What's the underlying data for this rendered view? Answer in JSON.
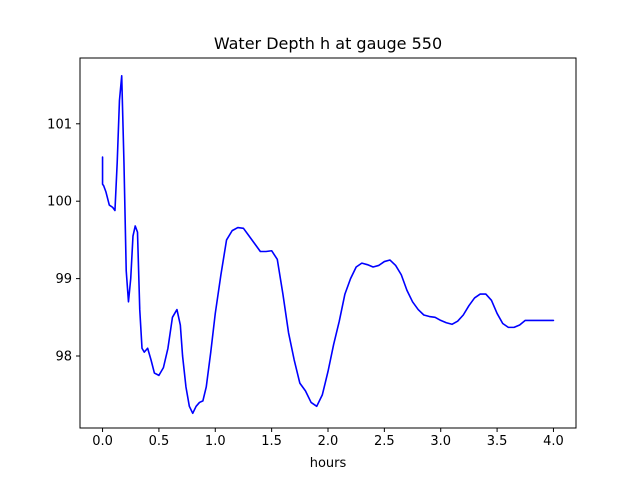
{
  "chart_data": {
    "type": "line",
    "title": "Water Depth h at gauge 550",
    "xlabel": "hours",
    "ylabel": "",
    "xlim": [
      -0.2,
      4.2
    ],
    "ylim": [
      97.07,
      101.85
    ],
    "xticks": [
      0.0,
      0.5,
      1.0,
      1.5,
      2.0,
      2.5,
      3.0,
      3.5,
      4.0
    ],
    "xtick_labels": [
      "0.0",
      "0.5",
      "1.0",
      "1.5",
      "2.0",
      "2.5",
      "3.0",
      "3.5",
      "4.0"
    ],
    "yticks": [
      98,
      99,
      100,
      101
    ],
    "ytick_labels": [
      "98",
      "99",
      "100",
      "101"
    ],
    "grid": false,
    "series": [
      {
        "color": "#0000ff",
        "x": [
          0.0,
          0.0,
          0.01,
          0.03,
          0.06,
          0.09,
          0.11,
          0.13,
          0.15,
          0.17,
          0.19,
          0.21,
          0.23,
          0.25,
          0.27,
          0.29,
          0.31,
          0.33,
          0.35,
          0.37,
          0.4,
          0.43,
          0.46,
          0.5,
          0.54,
          0.58,
          0.62,
          0.66,
          0.69,
          0.71,
          0.74,
          0.77,
          0.8,
          0.83,
          0.86,
          0.89,
          0.92,
          0.96,
          1.0,
          1.05,
          1.1,
          1.15,
          1.2,
          1.25,
          1.3,
          1.35,
          1.4,
          1.45,
          1.5,
          1.55,
          1.6,
          1.65,
          1.7,
          1.75,
          1.8,
          1.85,
          1.9,
          1.95,
          2.0,
          2.05,
          2.1,
          2.15,
          2.2,
          2.25,
          2.3,
          2.35,
          2.4,
          2.45,
          2.5,
          2.55,
          2.6,
          2.65,
          2.7,
          2.75,
          2.8,
          2.85,
          2.9,
          2.95,
          3.0,
          3.05,
          3.1,
          3.15,
          3.2,
          3.25,
          3.3,
          3.35,
          3.4,
          3.45,
          3.5,
          3.55,
          3.6,
          3.65,
          3.7,
          3.75,
          3.8,
          3.85,
          3.9,
          3.95,
          4.0
        ],
        "y": [
          100.57,
          100.22,
          100.2,
          100.12,
          99.95,
          99.92,
          99.88,
          100.5,
          101.3,
          101.62,
          100.5,
          99.1,
          98.7,
          99.0,
          99.55,
          99.68,
          99.6,
          98.6,
          98.1,
          98.05,
          98.1,
          97.95,
          97.78,
          97.75,
          97.85,
          98.1,
          98.5,
          98.6,
          98.4,
          98.0,
          97.6,
          97.35,
          97.26,
          97.35,
          97.4,
          97.42,
          97.6,
          98.05,
          98.55,
          99.05,
          99.5,
          99.62,
          99.66,
          99.65,
          99.55,
          99.45,
          99.35,
          99.35,
          99.36,
          99.25,
          98.8,
          98.3,
          97.95,
          97.65,
          97.55,
          97.4,
          97.35,
          97.5,
          97.8,
          98.15,
          98.45,
          98.8,
          99.0,
          99.15,
          99.2,
          99.18,
          99.15,
          99.17,
          99.22,
          99.24,
          99.17,
          99.05,
          98.85,
          98.7,
          98.6,
          98.53,
          98.51,
          98.5,
          98.46,
          98.43,
          98.41,
          98.45,
          98.53,
          98.65,
          98.75,
          98.8,
          98.8,
          98.72,
          98.55,
          98.42,
          98.37,
          98.37,
          98.4,
          98.46,
          98.46,
          98.46,
          98.46,
          98.46,
          98.46
        ]
      }
    ]
  }
}
